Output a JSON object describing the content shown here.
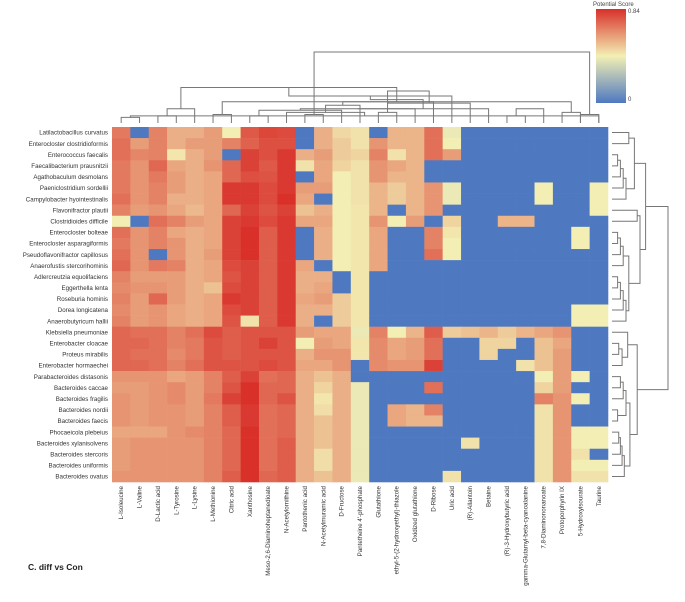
{
  "chart_data": {
    "type": "heatmap",
    "subtitle": "C. diff vs Con",
    "legend": {
      "title": "Potential Score",
      "min_label": "0",
      "max_label": "0.84",
      "range": [
        0,
        0.84
      ],
      "colors": [
        "#4e79c0",
        "#f3efb4",
        "#d9302a"
      ]
    },
    "columns": [
      "L-Isoleucine",
      "L-Valine",
      "D-Lactic acid",
      "L-Tyrosine",
      "L-Lysine",
      "L-Methionine",
      "Citric acid",
      "Xanthosine",
      "Meso-2,6-Diaminoheptanedioate",
      "N-Acetylornithine",
      "Pantothenic acid",
      "N-Acetylmuramic acid",
      "D-Fructose",
      "Pantetheine 4'-phosphate",
      "Glutathione",
      "ethyl-5-(2-hydroxyethyl)-thiazole",
      "Oxidized glutathione",
      "D-Ribose",
      "Uric acid",
      "(R)-Allantoin",
      "Betaine",
      "(R)-3-Hydroxybutyric acid",
      "gamma-Glutamyl-beta-cyanoalanine",
      "7,8-Diaminononanoate",
      "Protoporphyrin IX",
      "5-Hydroxyisourate",
      "Taurine"
    ],
    "rows": [
      "Latilactobacillus curvatus",
      "Enterocloster clostridioformis",
      "Enterococcus faecalis",
      "Faecalibacterium prausnitzii",
      "Agathobaculum desmolans",
      "Paeniclostridium sordellii",
      "Campylobacter hyointestinalis",
      "Flavonifractor plautii",
      "Clostridioides difficile",
      "Enterocloster bolteae",
      "Enterocloster asparagiformis",
      "Pseudoflavonifractor capillosus",
      "Anaerofustis stercorihominis",
      "Adlercreutzia equolifaciens",
      "Eggerthella lenta",
      "Roseburia hominis",
      "Dorea longicatena",
      "Anaerobutyricum hallii",
      "Klebsiella pneumoniae",
      "Enterobacter cloacae",
      "Proteus mirabilis",
      "Enterobacter hormaechei",
      "Parabacteroides distasonis",
      "Bacteroides caccae",
      "Bacteroides fragilis",
      "Bacteroides nordii",
      "Bacteroides faecis",
      "Phocaeicola plebeius",
      "Bacteroides xylanisolvens",
      "Bacteroides stercoris",
      "Bacteroides uniformis",
      "Bacteroides ovatus"
    ],
    "values": [
      [
        0.68,
        0.0,
        0.66,
        0.56,
        0.56,
        0.6,
        0.42,
        0.75,
        0.79,
        0.78,
        0.0,
        0.56,
        0.47,
        0.45,
        0.0,
        0.55,
        0.55,
        0.7,
        0.4,
        0,
        0,
        0,
        0,
        0,
        0,
        0,
        0
      ],
      [
        0.7,
        0.6,
        0.66,
        0.56,
        0.6,
        0.6,
        0.66,
        0.73,
        0.77,
        0.77,
        0.0,
        0.56,
        0.5,
        0.45,
        0.62,
        0.55,
        0.55,
        0.7,
        0.42,
        0,
        0,
        0,
        0,
        0,
        0,
        0,
        0
      ],
      [
        0.7,
        0.65,
        0.66,
        0.44,
        0.56,
        0.6,
        0.0,
        0.8,
        0.77,
        0.82,
        0.56,
        0.6,
        0.5,
        0.48,
        0.66,
        0.45,
        0.55,
        0.7,
        0.6,
        0,
        0,
        0,
        0,
        0,
        0,
        0,
        0
      ],
      [
        0.68,
        0.62,
        0.72,
        0.58,
        0.56,
        0.62,
        0.72,
        0.8,
        0.75,
        0.82,
        0.45,
        0.58,
        0.48,
        0.45,
        0.62,
        0.58,
        0.55,
        0.0,
        0.0,
        0,
        0,
        0,
        0,
        0,
        0,
        0,
        0
      ],
      [
        0.68,
        0.62,
        0.68,
        0.6,
        0.56,
        0.58,
        0.72,
        0.77,
        0.76,
        0.82,
        0.0,
        0.58,
        0.42,
        0.45,
        0.62,
        0.55,
        0.55,
        0.0,
        0.0,
        0,
        0,
        0,
        0,
        0,
        0,
        0,
        0
      ],
      [
        0.68,
        0.62,
        0.66,
        0.6,
        0.56,
        0.58,
        0.82,
        0.82,
        0.78,
        0.82,
        0.6,
        0.6,
        0.42,
        0.45,
        0.55,
        0.5,
        0.55,
        0.62,
        0.4,
        0,
        0,
        0,
        0,
        0.42,
        0,
        0,
        0.42
      ],
      [
        0.7,
        0.62,
        0.66,
        0.56,
        0.56,
        0.58,
        0.82,
        0.82,
        0.78,
        0.84,
        0.58,
        0.0,
        0.42,
        0.45,
        0.55,
        0.5,
        0.55,
        0.62,
        0.4,
        0,
        0,
        0,
        0,
        0.42,
        0,
        0,
        0.42
      ],
      [
        0.66,
        0.6,
        0.62,
        0.58,
        0.54,
        0.58,
        0.72,
        0.8,
        0.76,
        0.8,
        0.52,
        0.56,
        0.42,
        0.44,
        0.55,
        0.0,
        0.55,
        0.62,
        0.0,
        0,
        0,
        0,
        0,
        0,
        0,
        0,
        0.42
      ],
      [
        0.42,
        0.0,
        0.7,
        0.66,
        0.6,
        0.58,
        0.8,
        0.82,
        0.78,
        0.82,
        0.58,
        0.58,
        0.42,
        0.44,
        0.62,
        0.42,
        0.6,
        0.0,
        0.48,
        0,
        0,
        0.55,
        0.55,
        0,
        0,
        0,
        0
      ],
      [
        0.7,
        0.62,
        0.66,
        0.58,
        0.56,
        0.58,
        0.8,
        0.84,
        0.74,
        0.82,
        0.0,
        0.56,
        0.42,
        0.44,
        0.58,
        0.0,
        0.0,
        0.66,
        0.44,
        0,
        0,
        0,
        0,
        0,
        0,
        0.42,
        0
      ],
      [
        0.68,
        0.62,
        0.66,
        0.62,
        0.56,
        0.58,
        0.8,
        0.84,
        0.74,
        0.82,
        0.0,
        0.56,
        0.42,
        0.44,
        0.58,
        0.0,
        0.0,
        0.66,
        0.42,
        0,
        0,
        0,
        0,
        0,
        0,
        0.42,
        0
      ],
      [
        0.7,
        0.62,
        0.0,
        0.62,
        0.56,
        0.6,
        0.8,
        0.84,
        0.74,
        0.82,
        0.0,
        0.56,
        0.42,
        0.44,
        0.58,
        0.0,
        0.0,
        0.7,
        0.42,
        0,
        0,
        0,
        0,
        0,
        0,
        0,
        0
      ],
      [
        0.72,
        0.62,
        0.68,
        0.66,
        0.56,
        0.58,
        0.78,
        0.8,
        0.74,
        0.82,
        0.58,
        0.0,
        0.42,
        0.44,
        0.58,
        0.0,
        0.0,
        0.0,
        0.0,
        0,
        0,
        0,
        0,
        0,
        0,
        0,
        0
      ],
      [
        0.66,
        0.6,
        0.6,
        0.6,
        0.56,
        0.58,
        0.76,
        0.8,
        0.74,
        0.82,
        0.56,
        0.56,
        0.0,
        0.44,
        0.0,
        0.0,
        0.0,
        0.0,
        0.0,
        0,
        0,
        0,
        0,
        0,
        0,
        0,
        0
      ],
      [
        0.64,
        0.62,
        0.62,
        0.6,
        0.56,
        0.52,
        0.78,
        0.8,
        0.74,
        0.82,
        0.56,
        0.58,
        0.0,
        0.44,
        0.0,
        0.0,
        0.0,
        0.0,
        0.0,
        0,
        0,
        0,
        0,
        0,
        0,
        0,
        0
      ],
      [
        0.66,
        0.6,
        0.72,
        0.6,
        0.56,
        0.58,
        0.82,
        0.8,
        0.74,
        0.82,
        0.58,
        0.6,
        0.5,
        0.44,
        0.0,
        0.0,
        0.0,
        0.0,
        0.0,
        0,
        0,
        0,
        0,
        0,
        0,
        0,
        0
      ],
      [
        0.64,
        0.6,
        0.62,
        0.58,
        0.56,
        0.58,
        0.78,
        0.8,
        0.74,
        0.82,
        0.56,
        0.56,
        0.5,
        0.44,
        0.0,
        0.0,
        0.0,
        0.0,
        0.0,
        0,
        0,
        0,
        0,
        0,
        0,
        0.42,
        0.42
      ],
      [
        0.66,
        0.6,
        0.62,
        0.58,
        0.56,
        0.58,
        0.76,
        0.45,
        0.74,
        0.82,
        0.56,
        0.0,
        0.5,
        0.44,
        0.0,
        0.0,
        0.0,
        0.0,
        0.0,
        0,
        0,
        0,
        0,
        0,
        0,
        0.42,
        0.42
      ],
      [
        0.72,
        0.7,
        0.7,
        0.66,
        0.7,
        0.78,
        0.74,
        0.76,
        0.76,
        0.76,
        0.6,
        0.58,
        0.58,
        0.4,
        0.66,
        0.42,
        0.55,
        0.74,
        0.5,
        0.52,
        0.55,
        0.5,
        0.55,
        0.58,
        0.62,
        0,
        0
      ],
      [
        0.72,
        0.72,
        0.7,
        0.66,
        0.68,
        0.76,
        0.74,
        0.76,
        0.8,
        0.76,
        0.42,
        0.6,
        0.58,
        0.44,
        0.64,
        0.58,
        0.6,
        0.7,
        0.0,
        0,
        0.48,
        0.48,
        0,
        0.52,
        0.58,
        0,
        0
      ],
      [
        0.72,
        0.7,
        0.7,
        0.64,
        0.68,
        0.76,
        0.74,
        0.76,
        0.76,
        0.76,
        0.56,
        0.62,
        0.62,
        0.44,
        0.64,
        0.58,
        0.6,
        0.7,
        0.0,
        0,
        0.48,
        0,
        0,
        0.52,
        0.6,
        0,
        0
      ],
      [
        0.72,
        0.72,
        0.7,
        0.66,
        0.7,
        0.76,
        0.76,
        0.76,
        0.78,
        0.76,
        0.58,
        0.58,
        0.62,
        0.0,
        0.64,
        0.62,
        0.62,
        0.8,
        0.0,
        0,
        0,
        0,
        0.45,
        0.52,
        0.6,
        0,
        0
      ],
      [
        0.62,
        0.62,
        0.62,
        0.58,
        0.6,
        0.66,
        0.74,
        0.8,
        0.7,
        0.72,
        0.56,
        0.52,
        0.56,
        0.0,
        0.0,
        0.0,
        0.0,
        0.0,
        0.0,
        0,
        0,
        0,
        0,
        0.42,
        0.6,
        0.42,
        0
      ],
      [
        0.6,
        0.6,
        0.62,
        0.64,
        0.6,
        0.66,
        0.76,
        0.84,
        0.72,
        0.72,
        0.56,
        0.48,
        0.56,
        0.4,
        0.0,
        0.0,
        0.0,
        0.7,
        0.0,
        0,
        0,
        0,
        0,
        0.48,
        0.6,
        0,
        0
      ],
      [
        0.62,
        0.6,
        0.62,
        0.64,
        0.6,
        0.68,
        0.8,
        0.84,
        0.72,
        0.76,
        0.56,
        0.44,
        0.56,
        0.4,
        0.0,
        0.0,
        0.0,
        0.0,
        0.0,
        0,
        0,
        0,
        0,
        0.66,
        0.62,
        0.42,
        0
      ],
      [
        0.62,
        0.6,
        0.62,
        0.62,
        0.6,
        0.66,
        0.74,
        0.82,
        0.7,
        0.72,
        0.56,
        0.46,
        0.56,
        0.4,
        0.0,
        0.58,
        0.55,
        0.66,
        0.0,
        0,
        0,
        0,
        0,
        0.45,
        0.62,
        0,
        0
      ],
      [
        0.62,
        0.6,
        0.62,
        0.62,
        0.6,
        0.66,
        0.74,
        0.82,
        0.7,
        0.72,
        0.56,
        0.52,
        0.56,
        0.4,
        0.0,
        0.58,
        0.55,
        0.55,
        0.0,
        0,
        0,
        0,
        0,
        0.45,
        0.62,
        0,
        0
      ],
      [
        0.58,
        0.58,
        0.58,
        0.62,
        0.64,
        0.66,
        0.72,
        0.84,
        0.7,
        0.72,
        0.56,
        0.52,
        0.56,
        0.4,
        0.0,
        0.0,
        0.0,
        0.0,
        0.0,
        0,
        0,
        0,
        0,
        0.45,
        0.62,
        0.42,
        0.42
      ],
      [
        0.6,
        0.62,
        0.62,
        0.62,
        0.62,
        0.66,
        0.72,
        0.84,
        0.7,
        0.74,
        0.56,
        0.52,
        0.56,
        0.4,
        0.0,
        0.0,
        0.0,
        0.0,
        0.0,
        0.45,
        0,
        0,
        0,
        0.45,
        0.62,
        0.42,
        0.42
      ],
      [
        0.6,
        0.62,
        0.62,
        0.62,
        0.62,
        0.66,
        0.72,
        0.84,
        0.7,
        0.74,
        0.56,
        0.46,
        0.56,
        0.4,
        0.0,
        0.0,
        0.0,
        0.0,
        0.0,
        0,
        0,
        0,
        0,
        0.45,
        0.62,
        0.45,
        0
      ],
      [
        0.6,
        0.62,
        0.62,
        0.62,
        0.62,
        0.66,
        0.72,
        0.84,
        0.7,
        0.74,
        0.56,
        0.46,
        0.56,
        0.4,
        0.0,
        0.0,
        0.0,
        0.0,
        0.0,
        0,
        0,
        0,
        0,
        0.45,
        0.62,
        0.42,
        0.42
      ],
      [
        0.62,
        0.62,
        0.62,
        0.62,
        0.62,
        0.66,
        0.74,
        0.84,
        0.72,
        0.74,
        0.56,
        0.52,
        0.56,
        0.4,
        0.0,
        0.0,
        0.0,
        0.0,
        0.45,
        0,
        0,
        0,
        0,
        0.45,
        0.62,
        0.45,
        0.45
      ]
    ],
    "col_dendrogram": [
      [
        0,
        1,
        0.08
      ],
      [
        2,
        3,
        0.1
      ],
      [
        24,
        25,
        0.15
      ],
      [
        26,
        27,
        0.1
      ],
      [
        5,
        6,
        0.12
      ],
      [
        4,
        28,
        0.2
      ],
      [
        7,
        8,
        0.1
      ],
      [
        30,
        9,
        0.15
      ],
      [
        29,
        31,
        0.3
      ],
      [
        10,
        11,
        0.12
      ],
      [
        33,
        12,
        0.18
      ],
      [
        34,
        13,
        0.25
      ],
      [
        32,
        35,
        0.5
      ],
      [
        14,
        15,
        0.15
      ],
      [
        37,
        16,
        0.2
      ],
      [
        38,
        17,
        0.3
      ],
      [
        39,
        18,
        0.38
      ],
      [
        21,
        22,
        0.1
      ],
      [
        20,
        41,
        0.2
      ],
      [
        19,
        42,
        0.28
      ],
      [
        25,
        26,
        0.12
      ],
      [
        23,
        44,
        0.2
      ],
      [
        43,
        45,
        0.33
      ],
      [
        40,
        46,
        0.45
      ],
      [
        36,
        47,
        1.0
      ]
    ],
    "row_dendrogram": [
      [
        0,
        1,
        0.3
      ],
      [
        2,
        3,
        0.1
      ],
      [
        33,
        4,
        0.15
      ],
      [
        34,
        5,
        0.2
      ],
      [
        35,
        6,
        0.25
      ],
      [
        32,
        36,
        0.4
      ],
      [
        7,
        8,
        0.45
      ],
      [
        9,
        10,
        0.1
      ],
      [
        39,
        11,
        0.15
      ],
      [
        40,
        12,
        0.2
      ],
      [
        13,
        14,
        0.1
      ],
      [
        42,
        15,
        0.15
      ],
      [
        43,
        16,
        0.2
      ],
      [
        44,
        17,
        0.25
      ],
      [
        41,
        45,
        0.3
      ],
      [
        38,
        46,
        0.5
      ],
      [
        37,
        47,
        0.6
      ],
      [
        19,
        20,
        0.12
      ],
      [
        49,
        21,
        0.18
      ],
      [
        18,
        50,
        0.28
      ],
      [
        22,
        23,
        0.15
      ],
      [
        52,
        24,
        0.2
      ],
      [
        25,
        26,
        0.1
      ],
      [
        53,
        54,
        0.25
      ],
      [
        27,
        28,
        0.12
      ],
      [
        56,
        29,
        0.15
      ],
      [
        57,
        30,
        0.18
      ],
      [
        58,
        31,
        0.22
      ],
      [
        55,
        59,
        0.32
      ],
      [
        51,
        60,
        0.45
      ],
      [
        48,
        61,
        1.0
      ]
    ]
  }
}
